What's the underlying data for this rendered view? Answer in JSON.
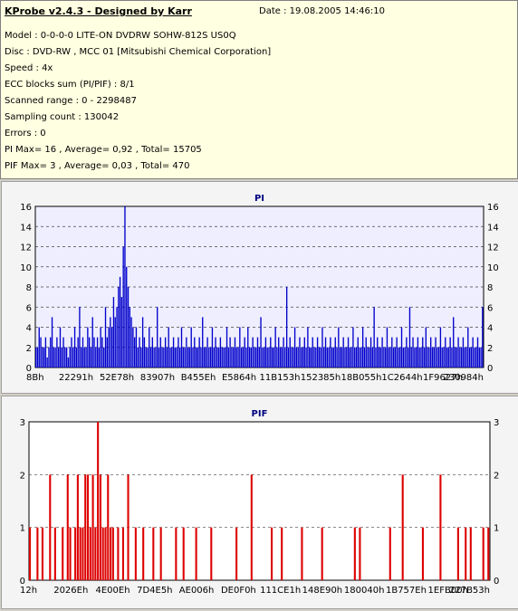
{
  "info": {
    "title": "KProbe v2.4.3 - Designed by Karr",
    "date": "Date : 19.08.2005 14:46:10",
    "lines": [
      "Model : 0-0-0-0 LITE-ON DVDRW SOHW-812S  US0Q",
      "Disc : DVD-RW , MCC 01 [Mitsubishi Chemical Corporation]",
      "Speed : 4x",
      "ECC blocks sum (PI/PIF) : 8/1",
      "Scanned range : 0 - 2298487",
      "Sampling count : 130042",
      "Errors : 0",
      "PI Max= 16 , Average= 0,92 , Total= 15705",
      "PIF Max= 3 , Average= 0,03 , Total= 470"
    ]
  },
  "colors": {
    "pi": "#0000cc",
    "pif": "#dd0000",
    "plot_bg": "#eeeeff",
    "pif_bg": "#ffffff"
  },
  "chart_data": [
    {
      "type": "bar",
      "title": "PI",
      "ylim": [
        0,
        16
      ],
      "yticks": [
        0,
        2,
        4,
        6,
        8,
        10,
        12,
        14,
        16
      ],
      "xticklabels": [
        "8Bh",
        "22291h",
        "52E78h",
        "83907h",
        "B455Eh",
        "E5864h",
        "11B153h",
        "152385h",
        "18B055h",
        "1C2644h",
        "1F9627h",
        "230984h"
      ],
      "grid": true,
      "series": [
        {
          "values": [
            2,
            2,
            4,
            3,
            2,
            2,
            3,
            1,
            2,
            3,
            5,
            2,
            2,
            3,
            2,
            4,
            2,
            3,
            2,
            2,
            1,
            2,
            3,
            2,
            4,
            2,
            3,
            6,
            2,
            3,
            2,
            2,
            4,
            3,
            2,
            5,
            3,
            2,
            3,
            2,
            4,
            3,
            2,
            6,
            3,
            4,
            5,
            4,
            7,
            5,
            6,
            8,
            9,
            7,
            12,
            16,
            10,
            8,
            6,
            5,
            4,
            3,
            4,
            2,
            3,
            2,
            5,
            3,
            2,
            2,
            4,
            2,
            3,
            2,
            2,
            6,
            2,
            3,
            2,
            2,
            3,
            2,
            4,
            2,
            2,
            3,
            2,
            2,
            3,
            2,
            4,
            2,
            2,
            3,
            2,
            2,
            4,
            2,
            3,
            2,
            2,
            3,
            2,
            5,
            2,
            2,
            3,
            2,
            2,
            4,
            2,
            3,
            2,
            2,
            3,
            2,
            2,
            2,
            4,
            2,
            3,
            2,
            2,
            3,
            2,
            2,
            4,
            2,
            2,
            3,
            2,
            4,
            2,
            2,
            3,
            2,
            2,
            3,
            2,
            5,
            2,
            2,
            3,
            2,
            2,
            3,
            2,
            2,
            4,
            2,
            3,
            2,
            2,
            3,
            2,
            8,
            2,
            3,
            2,
            2,
            4,
            2,
            2,
            3,
            2,
            2,
            3,
            2,
            4,
            2,
            2,
            3,
            2,
            2,
            3,
            2,
            2,
            4,
            2,
            3,
            2,
            2,
            3,
            2,
            2,
            3,
            2,
            4,
            2,
            2,
            3,
            2,
            2,
            3,
            2,
            2,
            4,
            2,
            2,
            3,
            2,
            2,
            4,
            2,
            3,
            2,
            2,
            3,
            2,
            6,
            2,
            3,
            2,
            2,
            3,
            2,
            2,
            4,
            2,
            2,
            3,
            2,
            2,
            3,
            2,
            2,
            4,
            2,
            2,
            3,
            2,
            6,
            2,
            3,
            2,
            2,
            3,
            2,
            2,
            3,
            2,
            4,
            2,
            2,
            3,
            2,
            2,
            3,
            2,
            2,
            4,
            2,
            2,
            3,
            2,
            2,
            3,
            2,
            5,
            2,
            2,
            3,
            2,
            2,
            3,
            2,
            2,
            4,
            2,
            2,
            3,
            2,
            2,
            3,
            2,
            2,
            6
          ]
        }
      ]
    },
    {
      "type": "bar",
      "title": "PIF",
      "ylim": [
        0,
        3
      ],
      "yticks": [
        0,
        1,
        2,
        3
      ],
      "xticklabels": [
        "12h",
        "2026Eh",
        "4E00Eh",
        "7D4E5h",
        "AE006h",
        "DE0F0h",
        "111CE1h",
        "148E90h",
        "180040h",
        "1B757Eh",
        "1EFB00h",
        "227B53h"
      ],
      "grid": true,
      "series": [
        {
          "values": [
            1,
            0,
            0,
            1,
            0,
            1,
            0,
            0,
            2,
            0,
            1,
            0,
            0,
            1,
            0,
            2,
            1,
            0,
            1,
            2,
            1,
            1,
            2,
            2,
            1,
            2,
            1,
            3,
            2,
            1,
            1,
            2,
            1,
            1,
            0,
            1,
            0,
            1,
            0,
            2,
            0,
            0,
            1,
            0,
            0,
            1,
            0,
            0,
            0,
            1,
            0,
            0,
            1,
            0,
            0,
            0,
            0,
            0,
            1,
            0,
            0,
            1,
            0,
            0,
            0,
            0,
            1,
            0,
            0,
            0,
            0,
            0,
            1,
            0,
            0,
            0,
            0,
            0,
            0,
            0,
            0,
            0,
            1,
            0,
            0,
            0,
            0,
            0,
            2,
            0,
            0,
            0,
            0,
            0,
            0,
            0,
            1,
            0,
            0,
            0,
            1,
            0,
            0,
            0,
            0,
            0,
            0,
            0,
            1,
            0,
            0,
            0,
            0,
            0,
            0,
            0,
            1,
            0,
            0,
            0,
            0,
            0,
            0,
            0,
            0,
            0,
            0,
            0,
            0,
            1,
            0,
            1,
            0,
            0,
            0,
            0,
            0,
            0,
            0,
            0,
            0,
            0,
            0,
            1,
            0,
            0,
            0,
            0,
            2,
            0,
            0,
            0,
            0,
            0,
            0,
            0,
            1,
            0,
            0,
            0,
            0,
            0,
            0,
            2,
            0,
            0,
            0,
            0,
            0,
            0,
            1,
            0,
            0,
            1,
            0,
            1,
            0,
            0,
            0,
            0,
            1,
            0,
            1
          ]
        }
      ]
    }
  ]
}
